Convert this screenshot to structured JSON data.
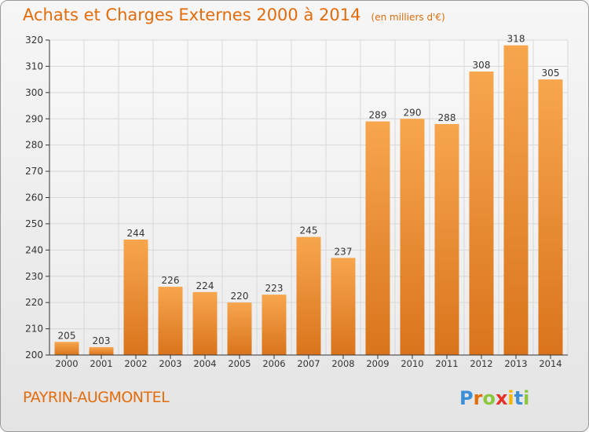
{
  "header": {
    "title": "Achats et Charges Externes 2000 à 2014",
    "unit": "(en milliers d'€)"
  },
  "footer": {
    "commune": "PAYRIN-AUGMONTEL",
    "logo_text": "Proxiti",
    "logo_letters": [
      {
        "ch": "P",
        "color": "#3a8fd8"
      },
      {
        "ch": "r",
        "color": "#e46c0a"
      },
      {
        "ch": "o",
        "color": "#8cc63f"
      },
      {
        "ch": "x",
        "color": "#e6332a"
      },
      {
        "ch": "i",
        "color": "#f4b400"
      },
      {
        "ch": "t",
        "color": "#3a8fd8"
      },
      {
        "ch": "i",
        "color": "#8cc63f"
      }
    ]
  },
  "colors": {
    "bar_top": "#f7a64e",
    "bar_bottom": "#d9741c",
    "title": "#e46c0a",
    "grid": "#d8d8d8",
    "axis": "#333333"
  },
  "chart_data": {
    "type": "bar",
    "categories": [
      "2000",
      "2001",
      "2002",
      "2003",
      "2004",
      "2005",
      "2006",
      "2007",
      "2008",
      "2009",
      "2010",
      "2011",
      "2012",
      "2013",
      "2014"
    ],
    "values": [
      205,
      203,
      244,
      226,
      224,
      220,
      223,
      245,
      237,
      289,
      290,
      288,
      308,
      318,
      305
    ],
    "title": "Achats et Charges Externes 2000 à 2014",
    "ylim": [
      200,
      320
    ],
    "yticks": [
      200,
      210,
      220,
      230,
      240,
      250,
      260,
      270,
      280,
      290,
      300,
      310,
      320
    ],
    "grid": true,
    "data_labels": true
  }
}
